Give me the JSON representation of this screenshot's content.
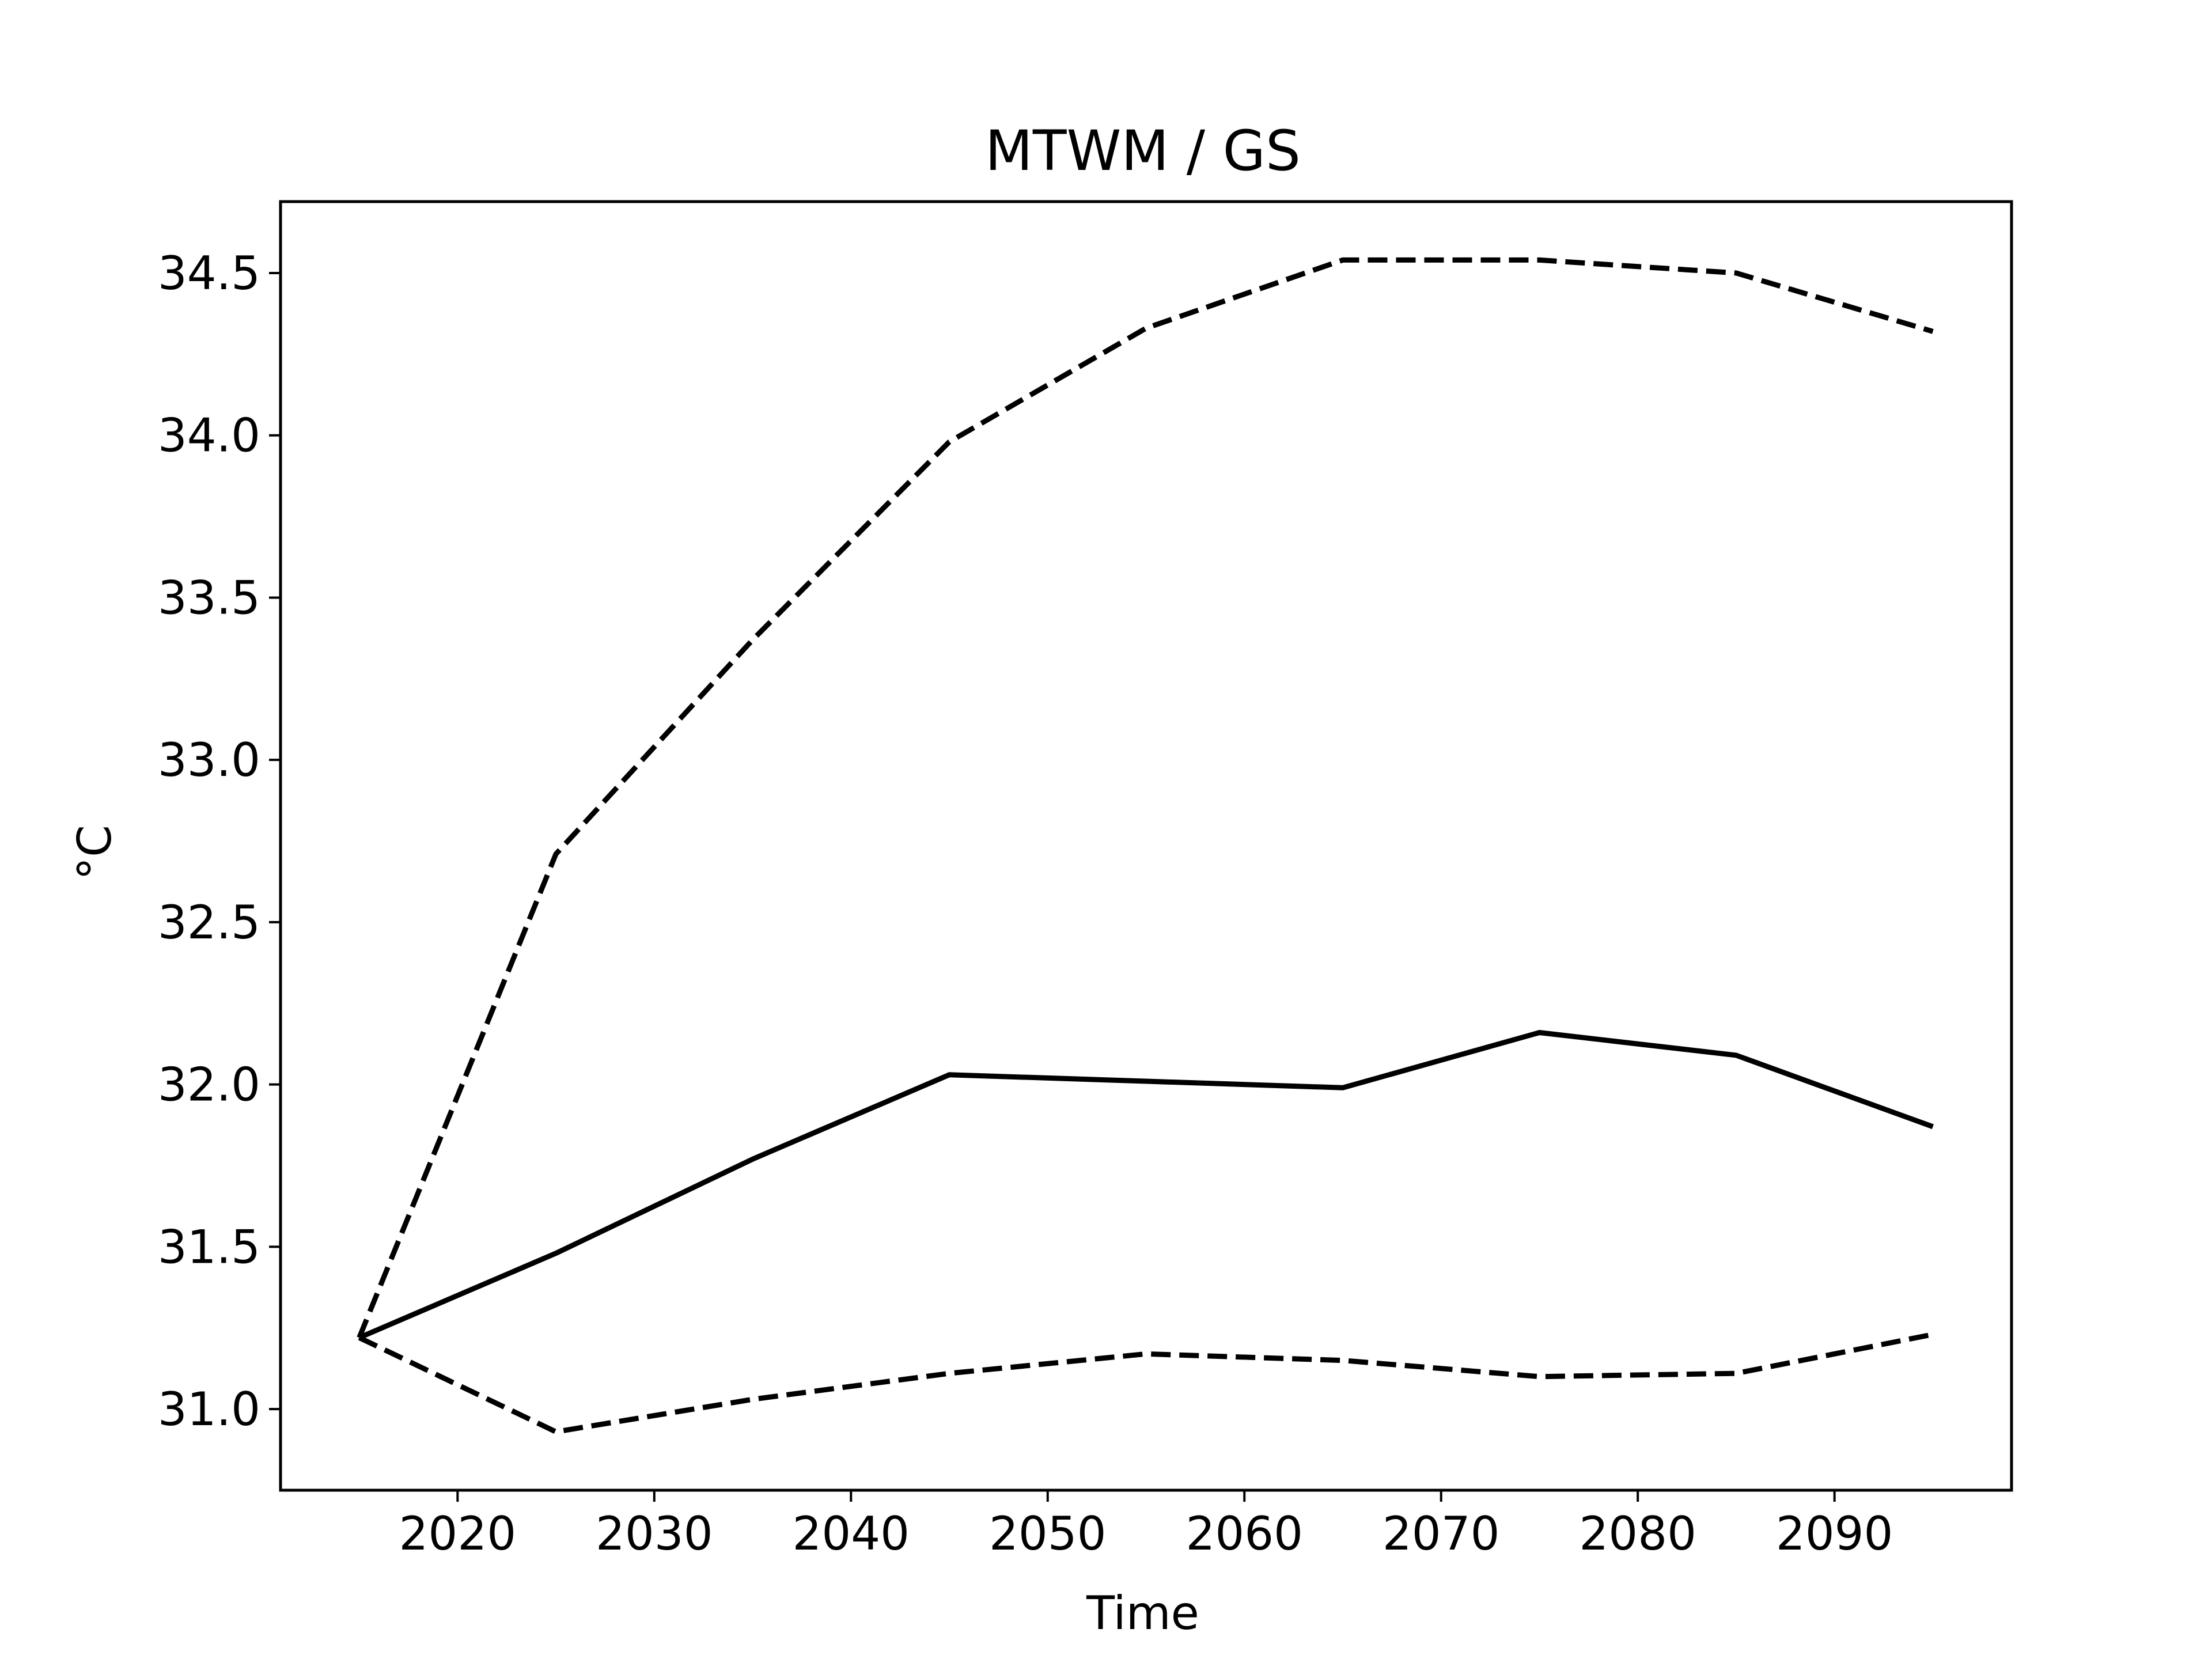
{
  "chart_data": {
    "type": "line",
    "title": "MTWM / GS",
    "xlabel": "Time",
    "ylabel": "°C",
    "xlim": [
      2011,
      2099
    ],
    "ylim": [
      30.75,
      34.72
    ],
    "xticks": [
      2020,
      2030,
      2040,
      2050,
      2060,
      2070,
      2080,
      2090
    ],
    "yticks": [
      31.0,
      31.5,
      32.0,
      32.5,
      33.0,
      33.5,
      34.0,
      34.5
    ],
    "grid": false,
    "legend": "none",
    "x": [
      2015,
      2025,
      2035,
      2045,
      2055,
      2065,
      2075,
      2085,
      2095
    ],
    "series": [
      {
        "style": "dashed",
        "color": "#000000",
        "values": [
          31.22,
          32.71,
          33.37,
          33.98,
          34.33,
          34.54,
          34.54,
          34.5,
          34.32
        ]
      },
      {
        "style": "solid",
        "color": "#000000",
        "values": [
          31.22,
          31.48,
          31.77,
          32.03,
          32.01,
          31.99,
          32.16,
          32.09,
          31.87
        ]
      },
      {
        "style": "dashed",
        "color": "#000000",
        "values": [
          31.22,
          30.93,
          31.03,
          31.11,
          31.17,
          31.15,
          31.1,
          31.11,
          31.23
        ]
      }
    ]
  }
}
